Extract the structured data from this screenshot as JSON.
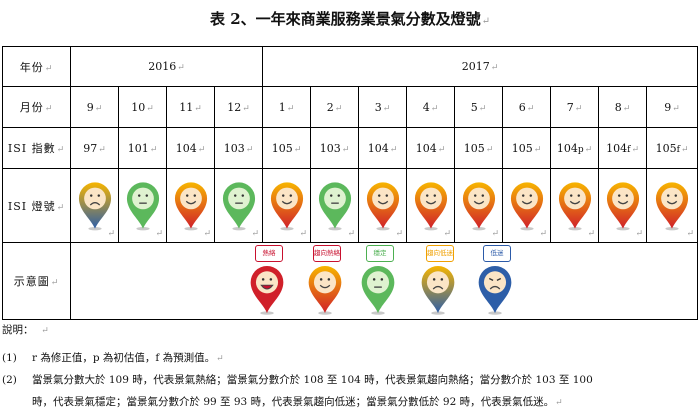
{
  "title": "表 2、一年來商業服務業景氣分數及燈號",
  "mark": "↵",
  "row_labels": {
    "year": "年份",
    "month": "月份",
    "isi": "ISI 指數",
    "light": "ISI 燈號",
    "legend": "示意圖"
  },
  "years": [
    {
      "label": "2016",
      "span": 4
    },
    {
      "label": "2017",
      "span": 9
    }
  ],
  "months": [
    "9",
    "10",
    "11",
    "12",
    "1",
    "2",
    "3",
    "4",
    "5",
    "6",
    "7",
    "8",
    "9"
  ],
  "isi_values": [
    "97",
    "101",
    "104",
    "103",
    "105",
    "103",
    "104",
    "104",
    "105",
    "105",
    "104",
    "104",
    "105"
  ],
  "isi_flags": [
    "",
    "",
    "",
    "",
    "",
    "",
    "",
    "",
    "",
    "",
    "p",
    "f",
    "f"
  ],
  "lights": [
    "blue-yellow",
    "green",
    "yellow-red",
    "green",
    "yellow-red",
    "green",
    "yellow-red",
    "yellow-red",
    "yellow-red",
    "yellow-red",
    "yellow-red",
    "yellow-red",
    "yellow-red"
  ],
  "legend": [
    {
      "label": "熱絡",
      "color": "#c8102e",
      "type": "red"
    },
    {
      "label": "趨向熱絡",
      "color": "#c8102e",
      "type": "yellow-red"
    },
    {
      "label": "穩定",
      "color": "#4caf50",
      "type": "green"
    },
    {
      "label": "趨向低迷",
      "color": "#f0a000",
      "type": "blue-yellow"
    },
    {
      "label": "低迷",
      "color": "#2b5aa8",
      "type": "blue"
    }
  ],
  "notes": {
    "heading": "說明：",
    "items": [
      {
        "num": "(1)",
        "text": "r 為修正值，p 為初估值，f 為預測值。"
      },
      {
        "num": "(2)",
        "text": "當景氣分數大於 109 時，代表景氣熱絡；當景氣分數介於 108 至 104 時，代表景氣趨向熱絡；當分數介於 103 至 100"
      },
      {
        "num": "",
        "text": "時，代表景氣穩定；當景氣分數介於 99 至 93 時，代表景氣趨向低迷；當景氣分數低於 92 時，代表景氣低迷。"
      }
    ]
  },
  "colors": {
    "red": "#d0202a",
    "yellow": "#f7b500",
    "green": "#5cb85c",
    "blue": "#2d5ea8",
    "orange": "#f08a1c"
  }
}
